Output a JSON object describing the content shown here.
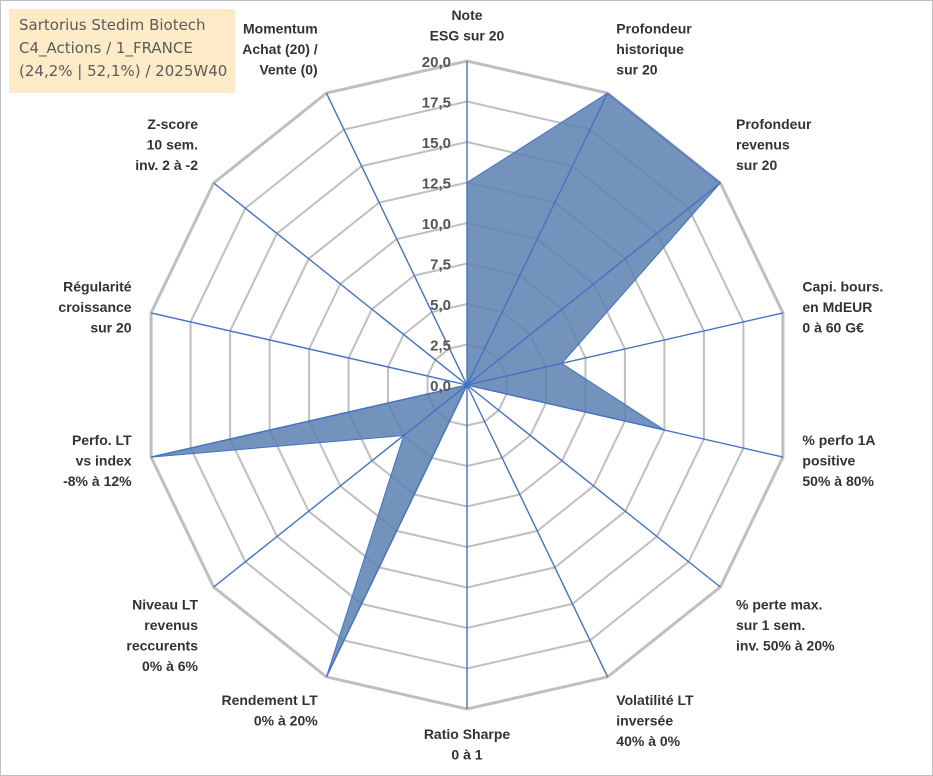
{
  "title_box": {
    "line1": "Sartorius Stedim Biotech",
    "line2": "C4_Actions / 1_FRANCE",
    "line3": "(24,2% | 52,1%) / 2025W40"
  },
  "chart_data": {
    "type": "radar",
    "title": "Sartorius Stedim Biotech",
    "subtitle": "C4_Actions / 1_FRANCE (24,2% | 52,1%) / 2025W40",
    "axis_range": [
      0,
      20
    ],
    "grid": true,
    "tick_labels": [
      "0,0",
      "2,5",
      "5,0",
      "7,5",
      "10,0",
      "12,5",
      "15,0",
      "17,5",
      "20,0"
    ],
    "categories": [
      [
        "Note",
        "ESG sur 20"
      ],
      [
        "Profondeur",
        "historique",
        "sur 20"
      ],
      [
        "Profondeur",
        "revenus",
        "sur 20"
      ],
      [
        "Capi. bours.",
        "en MdEUR",
        "0 à 60 G€"
      ],
      [
        "% perfo 1A",
        "positive",
        "50% à 80%"
      ],
      [
        "% perte max.",
        "sur 1 sem.",
        "inv. 50% à 20%"
      ],
      [
        "Volatilité LT",
        "inversée",
        "40% à 0%"
      ],
      [
        "Ratio Sharpe",
        "0 à 1"
      ],
      [
        "Rendement LT",
        "0% à 20%"
      ],
      [
        "Niveau LT",
        "revenus",
        "reccurents",
        "0% à 6%"
      ],
      [
        "Perfo. LT",
        "vs index",
        "-8% à 12%"
      ],
      [
        "Régularité",
        "croissance",
        "sur 20"
      ],
      [
        "Z-score",
        "10 sem.",
        "inv. 2 à -2"
      ],
      [
        "Momentum",
        "Achat (20) /",
        "Vente (0)"
      ]
    ],
    "series": [
      {
        "name": "Sartorius Stedim Biotech",
        "values": [
          12.5,
          20,
          20,
          6,
          12.5,
          0,
          0,
          0,
          20,
          5,
          20,
          0,
          0,
          0
        ]
      }
    ],
    "colors": {
      "fill": "#5b80b0",
      "line": "#4472c4",
      "grid": "#bfbfbf"
    }
  }
}
